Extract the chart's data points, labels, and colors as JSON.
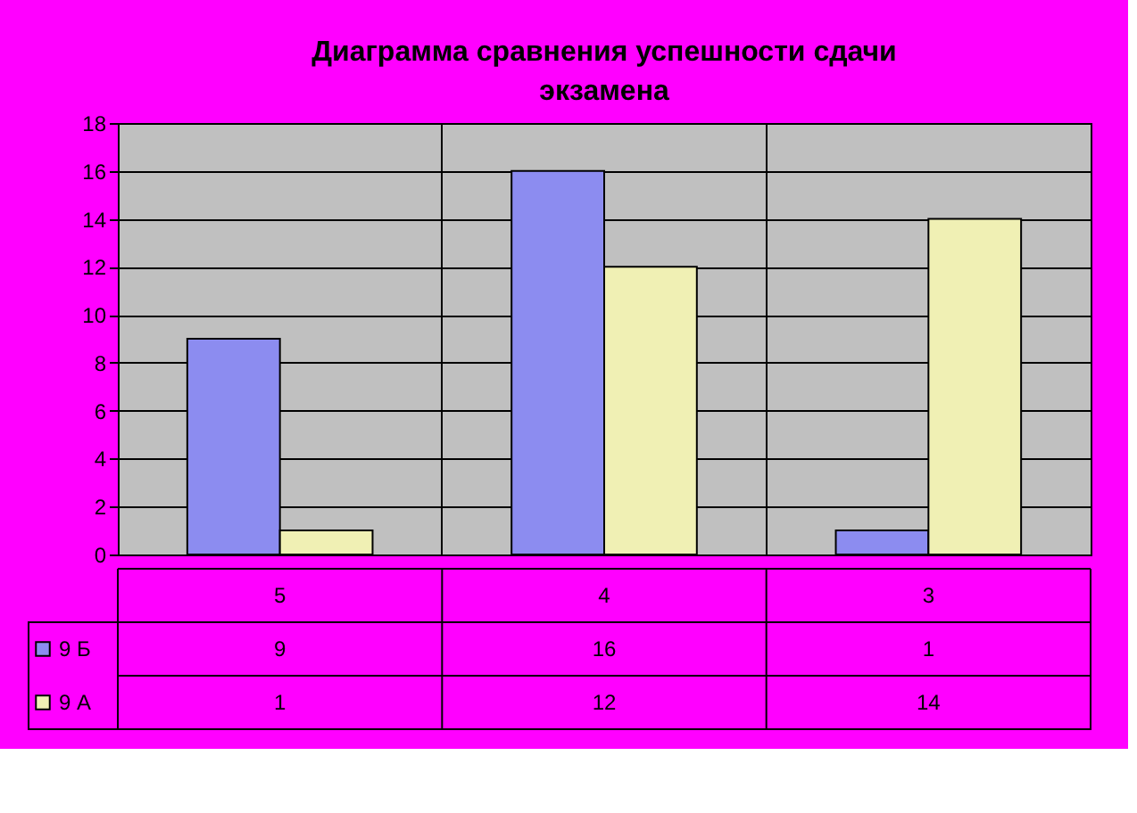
{
  "chart_data": {
    "type": "bar",
    "title": "Диаграмма сравнения успешности сдачи экзамена",
    "categories": [
      "5",
      "4",
      "3"
    ],
    "series": [
      {
        "name": "9 Б",
        "color": "#8c8cf0",
        "values": [
          9,
          16,
          1
        ]
      },
      {
        "name": "9 А",
        "color": "#f0f0b4",
        "values": [
          1,
          12,
          14
        ]
      }
    ],
    "ylim": [
      0,
      18
    ],
    "yticks": [
      0,
      2,
      4,
      6,
      8,
      10,
      12,
      14,
      16,
      18
    ],
    "grid": "y",
    "data_labels": true,
    "legend": "bottom left"
  }
}
